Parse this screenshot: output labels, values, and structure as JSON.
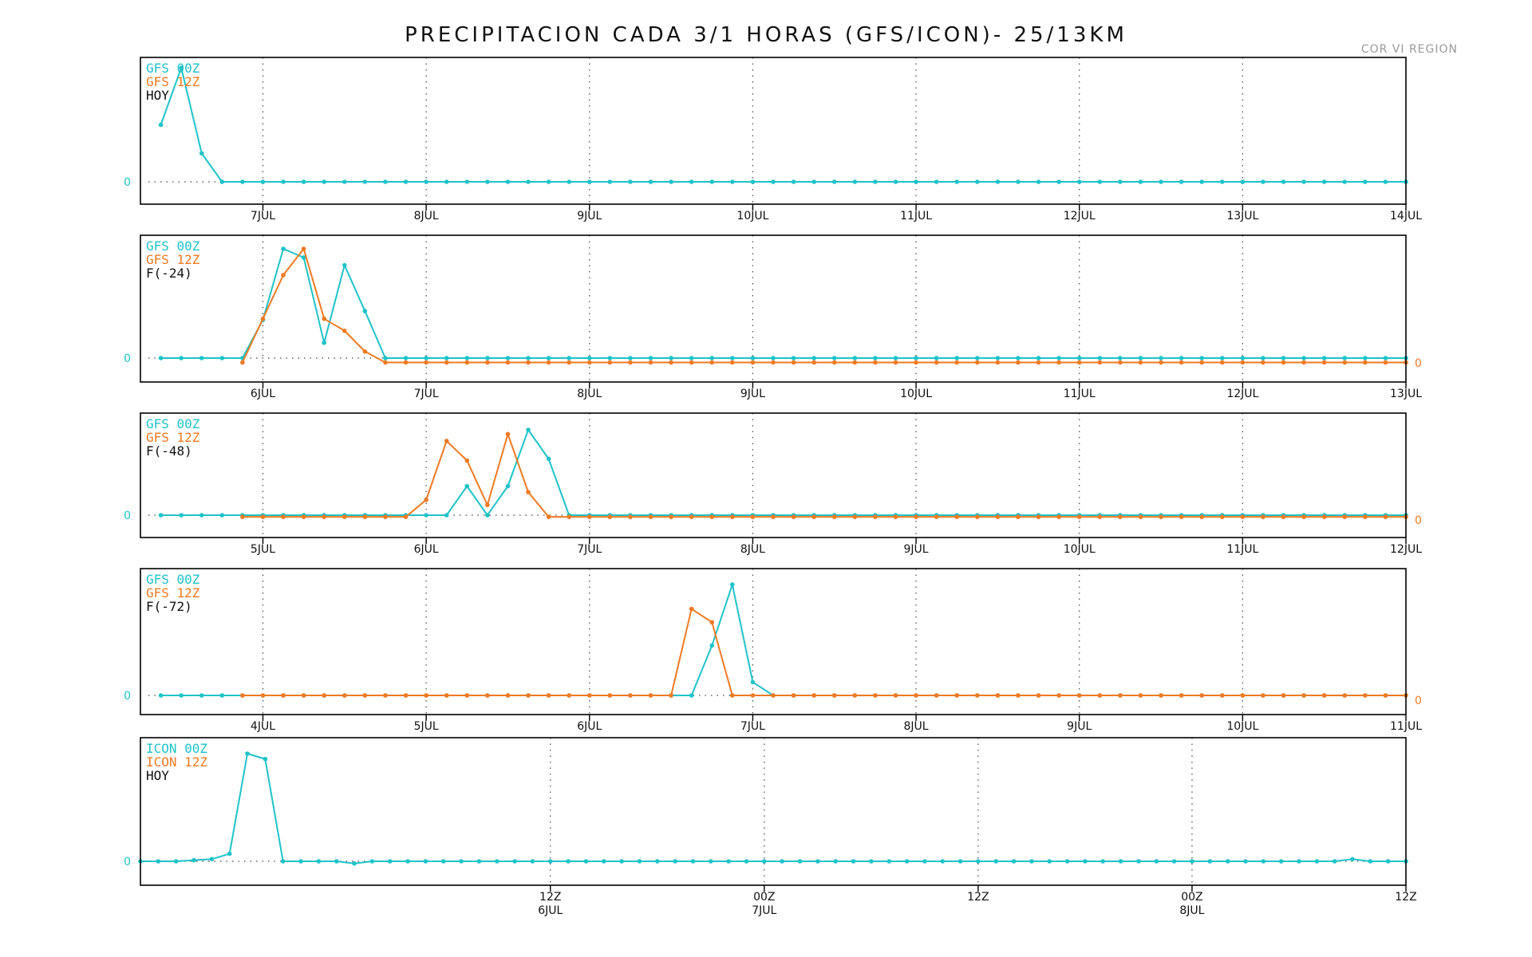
{
  "header": {
    "title": "PRECIPITACION CADA 3/1 HORAS (GFS/ICON)- 25/13KM",
    "credit": "COR VI REGION"
  },
  "colors": {
    "series_a": "#1fc3c8",
    "series_b": "#ef7a22",
    "frame": "#000000",
    "grid": "#444444"
  },
  "chart_data": [
    {
      "type": "line",
      "panel": 1,
      "label": "HOY",
      "legend": [
        "GFS 00Z",
        "GFS 12Z"
      ],
      "x_ticks": [
        "7JUL",
        "8JUL",
        "9JUL",
        "10JUL",
        "11JUL",
        "12JUL",
        "13JUL",
        "14JUL"
      ],
      "x_start": 6.25,
      "x_end": 14.0,
      "step": 0.125,
      "x_tick_values": [
        7,
        8,
        9,
        10,
        11,
        12,
        13,
        14
      ],
      "ylim": [
        0,
        1.25
      ],
      "zero_labels": [
        "0"
      ],
      "series": [
        {
          "name": "GFS 00Z",
          "color": "series_a",
          "start": 6.375,
          "offset": 0,
          "values": [
            0.5,
            1.0,
            0.25,
            0,
            0,
            0,
            0,
            0,
            0,
            0,
            0,
            0,
            0,
            0,
            0,
            0,
            0,
            0,
            0,
            0,
            0,
            0,
            0,
            0,
            0,
            0,
            0,
            0,
            0,
            0,
            0,
            0,
            0,
            0,
            0,
            0,
            0,
            0,
            0,
            0,
            0,
            0,
            0,
            0,
            0,
            0,
            0,
            0,
            0,
            0,
            0,
            0,
            0,
            0,
            0,
            0,
            0,
            0,
            0,
            0,
            0,
            0,
            0
          ]
        }
      ]
    },
    {
      "type": "line",
      "panel": 2,
      "label": "F(-24)",
      "legend": [
        "GFS 00Z",
        "GFS 12Z"
      ],
      "x_ticks": [
        "6JUL",
        "7JUL",
        "8JUL",
        "9JUL",
        "10JUL",
        "11JUL",
        "12JUL",
        "13JUL"
      ],
      "x_start": 5.25,
      "x_end": 13.0,
      "step": 0.125,
      "x_tick_values": [
        6,
        7,
        8,
        9,
        10,
        11,
        12,
        13
      ],
      "ylim": [
        0,
        1.1
      ],
      "zero_labels": [
        "0",
        "0"
      ],
      "series": [
        {
          "name": "GFS 00Z",
          "color": "series_a",
          "start": 5.375,
          "offset": 0,
          "values": [
            0,
            0,
            0,
            0,
            0,
            0.35,
            1.0,
            0.92,
            0.14,
            0.85,
            0.43,
            0,
            0,
            0,
            0,
            0,
            0,
            0,
            0,
            0,
            0,
            0,
            0,
            0,
            0,
            0,
            0,
            0,
            0,
            0,
            0,
            0,
            0,
            0,
            0,
            0,
            0,
            0,
            0,
            0,
            0,
            0,
            0,
            0,
            0,
            0,
            0,
            0,
            0,
            0,
            0,
            0,
            0,
            0,
            0,
            0,
            0,
            0,
            0,
            0,
            0,
            0,
            0
          ]
        },
        {
          "name": "GFS 12Z",
          "color": "series_b",
          "start": 5.875,
          "offset": -0.04,
          "values": [
            0,
            0.4,
            0.8,
            1.04,
            0.4,
            0.29,
            0.1,
            0,
            0,
            0,
            0,
            0,
            0,
            0,
            0,
            0,
            0,
            0,
            0,
            0,
            0,
            0,
            0,
            0,
            0,
            0,
            0,
            0,
            0,
            0,
            0,
            0,
            0,
            0,
            0,
            0,
            0,
            0,
            0,
            0,
            0,
            0,
            0,
            0,
            0,
            0,
            0,
            0,
            0,
            0,
            0,
            0,
            0,
            0,
            0,
            0,
            0,
            0,
            0
          ]
        }
      ]
    },
    {
      "type": "line",
      "panel": 3,
      "label": "F(-48)",
      "legend": [
        "GFS 00Z",
        "GFS 12Z"
      ],
      "x_ticks": [
        "5JUL",
        "6JUL",
        "7JUL",
        "8JUL",
        "9JUL",
        "10JUL",
        "11JUL",
        "12JUL"
      ],
      "x_start": 4.25,
      "x_end": 12.0,
      "step": 0.125,
      "x_tick_values": [
        5,
        6,
        7,
        8,
        9,
        10,
        11,
        12
      ],
      "ylim": [
        0,
        1.05
      ],
      "zero_labels": [
        "0",
        "0"
      ],
      "series": [
        {
          "name": "GFS 00Z",
          "color": "series_a",
          "start": 4.375,
          "offset": 0,
          "values": [
            0,
            0,
            0,
            0,
            0,
            0,
            0,
            0,
            0,
            0,
            0,
            0,
            0,
            0,
            0,
            0.34,
            0,
            0.34,
            1.0,
            0.66,
            0,
            0,
            0,
            0,
            0,
            0,
            0,
            0,
            0,
            0,
            0,
            0,
            0,
            0,
            0,
            0,
            0,
            0,
            0,
            0,
            0,
            0,
            0,
            0,
            0,
            0,
            0,
            0,
            0,
            0,
            0,
            0,
            0,
            0,
            0,
            0,
            0,
            0,
            0,
            0,
            0,
            0,
            0
          ]
        },
        {
          "name": "GFS 12Z",
          "color": "series_b",
          "start": 4.875,
          "offset": -0.02,
          "values": [
            0,
            0,
            0,
            0,
            0,
            0,
            0,
            0,
            0,
            0.2,
            0.89,
            0.66,
            0.14,
            0.97,
            0.29,
            0,
            0,
            0,
            0,
            0,
            0,
            0,
            0,
            0,
            0,
            0,
            0,
            0,
            0,
            0,
            0,
            0,
            0,
            0,
            0,
            0,
            0,
            0,
            0,
            0,
            0,
            0,
            0,
            0,
            0,
            0,
            0,
            0,
            0,
            0,
            0,
            0,
            0,
            0,
            0,
            0,
            0,
            0,
            0
          ]
        }
      ]
    },
    {
      "type": "line",
      "panel": 4,
      "label": "F(-72)",
      "legend": [
        "GFS 00Z",
        "GFS 12Z"
      ],
      "x_ticks": [
        "4JUL",
        "5JUL",
        "6JUL",
        "7JUL",
        "8JUL",
        "9JUL",
        "10JUL",
        "11JUL"
      ],
      "x_start": 3.25,
      "x_end": 11.0,
      "step": 0.125,
      "x_tick_values": [
        4,
        5,
        6,
        7,
        8,
        9,
        10,
        11
      ],
      "ylim": [
        0,
        1.2
      ],
      "zero_labels": [
        "0",
        "0"
      ],
      "series": [
        {
          "name": "GFS 00Z",
          "color": "series_a",
          "start": 3.375,
          "offset": 0,
          "values": [
            0,
            0,
            0,
            0,
            0,
            0,
            0,
            0,
            0,
            0,
            0,
            0,
            0,
            0,
            0,
            0,
            0,
            0,
            0,
            0,
            0,
            0,
            0,
            0,
            0,
            0,
            0,
            0.45,
            1.0,
            0.12,
            0,
            0,
            0,
            0,
            0,
            0,
            0,
            0,
            0,
            0,
            0,
            0,
            0,
            0,
            0,
            0,
            0,
            0,
            0,
            0,
            0,
            0,
            0,
            0,
            0,
            0,
            0,
            0,
            0,
            0,
            0,
            0,
            0
          ]
        },
        {
          "name": "GFS 12Z",
          "color": "series_b",
          "start": 3.875,
          "offset": 0,
          "values": [
            0,
            0,
            0,
            0,
            0,
            0,
            0,
            0,
            0,
            0,
            0,
            0,
            0,
            0,
            0,
            0,
            0,
            0,
            0,
            0,
            0,
            0,
            0.78,
            0.66,
            0,
            0,
            0,
            0,
            0,
            0,
            0,
            0,
            0,
            0,
            0,
            0,
            0,
            0,
            0,
            0,
            0,
            0,
            0,
            0,
            0,
            0,
            0,
            0,
            0,
            0,
            0,
            0,
            0,
            0,
            0,
            0,
            0,
            0,
            0
          ]
        }
      ]
    },
    {
      "type": "line",
      "panel": 5,
      "label": "HOY",
      "legend": [
        "ICON 00Z",
        "ICON 12Z"
      ],
      "x_ticks": [
        "12Z",
        "00Z",
        "12Z",
        "00Z",
        "12Z"
      ],
      "x_ticks_sub": [
        "6JUL",
        "7JUL",
        "",
        "8JUL",
        ""
      ],
      "x_start": 5.5417,
      "x_end": 8.5,
      "step": 0.041667,
      "x_tick_values": [
        6.5,
        7.0,
        7.5,
        8.0,
        8.5
      ],
      "x_tick_end": 8.5,
      "ylim": [
        0,
        1.1
      ],
      "zero_labels": [
        "0"
      ],
      "series": [
        {
          "name": "ICON 00Z",
          "color": "series_a",
          "start": 5.5417,
          "offset": 0,
          "values": [
            0,
            0,
            0,
            0.01,
            0.02,
            0.07,
            1.0,
            0.95,
            0,
            0,
            0,
            0,
            -0.02,
            0,
            0,
            0,
            0,
            0,
            0,
            0,
            0,
            0,
            0,
            0,
            0,
            0,
            0,
            0,
            0,
            0,
            0,
            0,
            0,
            0,
            0,
            0,
            0,
            0,
            0,
            0,
            0,
            0,
            0,
            0,
            0,
            0,
            0,
            0,
            0,
            0,
            0,
            0,
            0,
            0,
            0,
            0,
            0,
            0,
            0,
            0,
            0,
            0,
            0,
            0,
            0,
            0,
            0,
            0,
            0.02,
            0,
            0,
            0,
            0,
            0
          ]
        }
      ]
    }
  ]
}
